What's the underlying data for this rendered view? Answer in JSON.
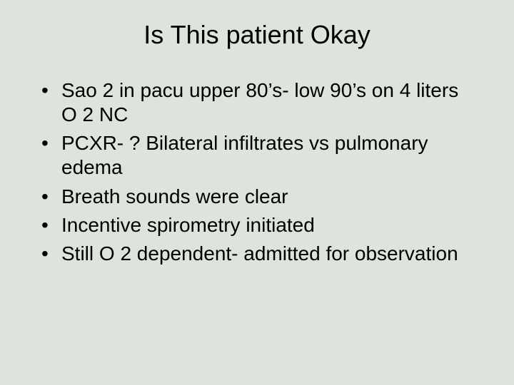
{
  "slide": {
    "background_color": "#dde4db",
    "text_color": "#000000",
    "title": "Is This patient Okay",
    "title_fontsize": 36,
    "bullet_fontsize": 28,
    "font_family": "Arial",
    "bullets": [
      "Sao 2 in pacu upper 80’s- low 90’s on 4 liters O 2 NC",
      "PCXR- ? Bilateral infiltrates vs pulmonary edema",
      "Breath sounds were clear",
      "Incentive spirometry initiated",
      "Still O 2 dependent- admitted for observation"
    ]
  }
}
